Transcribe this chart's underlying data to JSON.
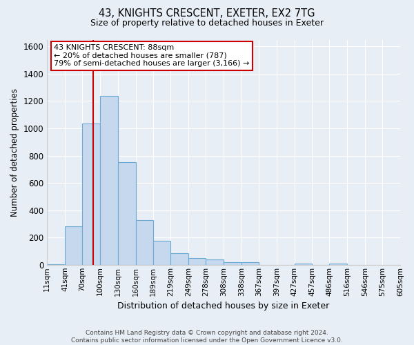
{
  "title": "43, KNIGHTS CRESCENT, EXETER, EX2 7TG",
  "subtitle": "Size of property relative to detached houses in Exeter",
  "xlabel": "Distribution of detached houses by size in Exeter",
  "ylabel": "Number of detached properties",
  "bin_edges": [
    11,
    41,
    70,
    100,
    130,
    160,
    189,
    219,
    249,
    278,
    308,
    338,
    367,
    397,
    427,
    457,
    486,
    516,
    546,
    575,
    605
  ],
  "counts": [
    5,
    280,
    1035,
    1240,
    750,
    330,
    175,
    85,
    50,
    38,
    20,
    20,
    0,
    0,
    8,
    0,
    8,
    0,
    0,
    0
  ],
  "vline_x": 88,
  "ylim": [
    0,
    1650
  ],
  "yticks": [
    0,
    200,
    400,
    600,
    800,
    1000,
    1200,
    1400,
    1600
  ],
  "bar_facecolor": "#c5d8ee",
  "bar_edgecolor": "#6aaad4",
  "vline_color": "#cc0000",
  "annotation_line1": "43 KNIGHTS CRESCENT: 88sqm",
  "annotation_line2": "← 20% of detached houses are smaller (787)",
  "annotation_line3": "79% of semi-detached houses are larger (3,166) →",
  "annotation_box_color": "#ffffff",
  "annotation_box_edgecolor": "#cc0000",
  "footer_line1": "Contains HM Land Registry data © Crown copyright and database right 2024.",
  "footer_line2": "Contains public sector information licensed under the Open Government Licence v3.0.",
  "background_color": "#e8eef5",
  "plot_background_color": "#e8eef5",
  "grid_color": "#ffffff"
}
